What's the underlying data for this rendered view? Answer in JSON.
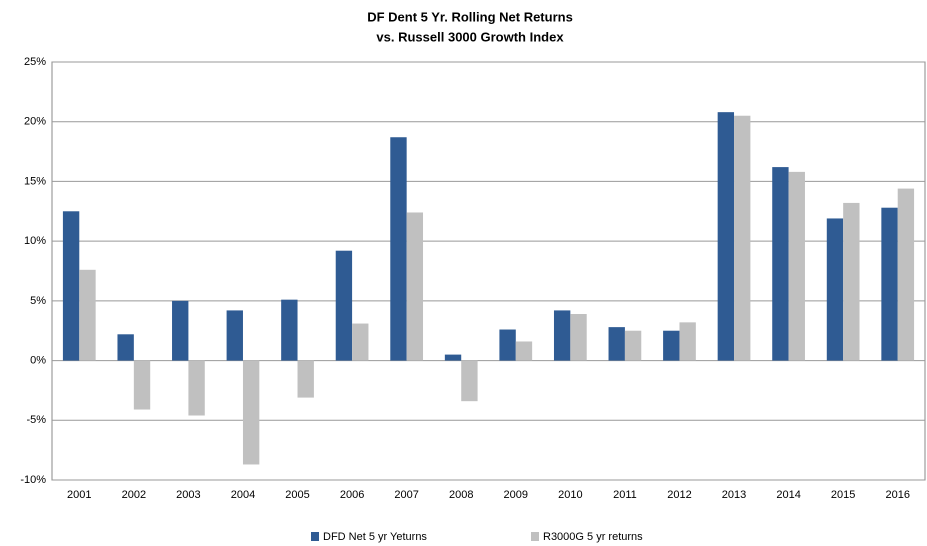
{
  "chart_data": {
    "type": "bar",
    "title": "DF Dent 5 Yr. Rolling Net Returns",
    "subtitle": "vs. Russell 3000 Growth Index",
    "categories": [
      "2001",
      "2002",
      "2003",
      "2004",
      "2005",
      "2006",
      "2007",
      "2008",
      "2009",
      "2010",
      "2011",
      "2012",
      "2013",
      "2014",
      "2015",
      "2016"
    ],
    "series": [
      {
        "name": "DFD Net 5 yr Yeturns",
        "color": "#2f5b93",
        "values": [
          12.5,
          2.2,
          5.0,
          4.2,
          5.1,
          9.2,
          18.7,
          0.5,
          2.6,
          4.2,
          2.8,
          2.5,
          20.8,
          16.2,
          11.9,
          12.8
        ]
      },
      {
        "name": "R3000G 5 yr returns",
        "color": "#c0c0c0",
        "values": [
          7.6,
          -4.1,
          -4.6,
          -8.7,
          -3.1,
          3.1,
          12.4,
          -3.4,
          1.6,
          3.9,
          2.5,
          3.2,
          20.5,
          15.8,
          13.2,
          14.4
        ]
      }
    ],
    "ylim": [
      -10,
      25
    ],
    "yticks": [
      {
        "value": -10,
        "label": "-10%"
      },
      {
        "value": -5,
        "label": "-5%"
      },
      {
        "value": 0,
        "label": "0%"
      },
      {
        "value": 5,
        "label": "5%"
      },
      {
        "value": 10,
        "label": "10%"
      },
      {
        "value": 15,
        "label": "15%"
      },
      {
        "value": 20,
        "label": "20%"
      },
      {
        "value": 25,
        "label": "25%"
      }
    ],
    "grid": true,
    "legend": "bottom"
  }
}
